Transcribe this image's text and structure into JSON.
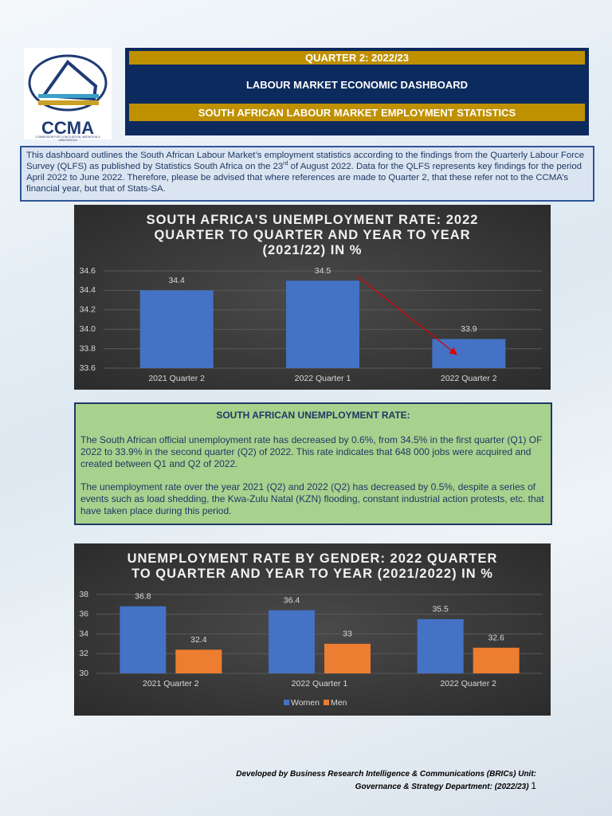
{
  "logo": {
    "name": "CCMA",
    "subtitle": "COMMISSION FOR CONCILIATION, MEDIATION & ARBITRATION"
  },
  "header": {
    "quarter": "QUARTER 2: 2022/23",
    "title": "LABOUR MARKET ECONOMIC DASHBOARD",
    "subtitle": "SOUTH AFRICAN LABOUR MARKET EMPLOYMENT STATISTICS"
  },
  "intro": {
    "before": "This dashboard outlines the South African Labour Market’s employment statistics according to the findings from the Quarterly Labour Force Survey (QLFS) as published by Statistics South Africa on the 23",
    "sup": "rd",
    "after": " of August 2022. Data for the QLFS represents key findings for the period April 2022 to June 2022. Therefore, please be advised that where references are made to Quarter 2, that these refer not to the CCMA’s financial year, but that of Stats-SA."
  },
  "chart_data": [
    {
      "type": "bar",
      "title": "SOUTH AFRICA'S UNEMPLOYMENT RATE: 2022 QUARTER TO QUARTER AND YEAR TO YEAR (2021/22) IN %",
      "categories": [
        "2021 Quarter 2",
        "2022 Quarter 1",
        "2022 Quarter 2"
      ],
      "values": [
        34.4,
        34.5,
        33.9
      ],
      "color": "#4472c4",
      "ylim": [
        33.6,
        34.6
      ],
      "yticks": [
        33.6,
        33.8,
        {
          "value": 34,
          "label": "34.0"
        },
        34.2,
        34.4,
        34.6
      ],
      "grid": true
    },
    {
      "type": "bar",
      "title": "UNEMPLOYMENT RATE BY GENDER: 2022 QUARTER TO QUARTER AND YEAR TO YEAR (2021/2022) IN %",
      "categories": [
        "2021 Quarter 2",
        "2022 Quarter 1",
        "2022 Quarter 2"
      ],
      "series": [
        {
          "name": "Women",
          "color": "#4472c4",
          "values": [
            36.8,
            36.4,
            35.5
          ]
        },
        {
          "name": "Men",
          "color": "#ed7d31",
          "values": [
            32.4,
            33,
            32.6
          ]
        }
      ],
      "ylim": [
        30,
        38
      ],
      "yticks": [
        30,
        32,
        34,
        36,
        38
      ],
      "grid": true,
      "legend": "bottom"
    }
  ],
  "summary": {
    "title": "SOUTH AFRICAN UNEMPLOYMENT RATE:",
    "paragraphs": [
      "The South African official unemployment rate has decreased by 0.6%, from 34.5% in the first quarter (Q1) OF 2022 to 33.9% in the second quarter (Q2) of 2022. This rate indicates that 648 000 jobs were acquired and created between Q1 and Q2 of 2022.",
      "The unemployment rate over the year 2021 (Q2) and 2022 (Q2) has decreased by 0.5%, despite a series of events such as load shedding, the Kwa-Zulu Natal (KZN) flooding, constant industrial action protests, etc. that have taken place during this period."
    ]
  },
  "footer": {
    "line1": "Developed by Business Research Intelligence & Communications (BRICs) Unit:",
    "line2": "Governance & Strategy Department: (2022/23)",
    "page": 1
  }
}
